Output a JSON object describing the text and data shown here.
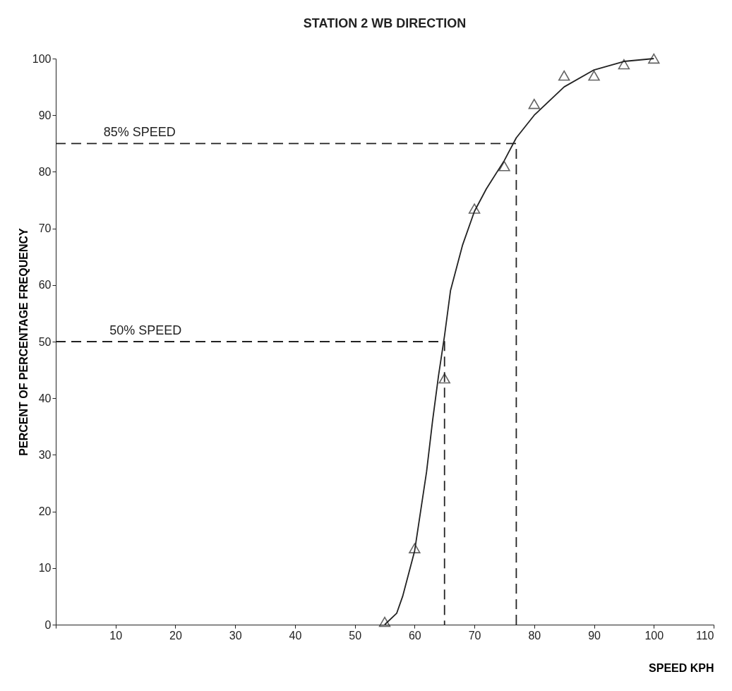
{
  "chart_data": {
    "type": "scatter",
    "title": "STATION 2 WB DIRECTION",
    "xlabel": "SPEED KPH",
    "ylabel": "PERCENT OF PERCENTAGE FREQUENCY",
    "xlim": [
      0,
      110
    ],
    "ylim": [
      0,
      100
    ],
    "xticks": [
      {
        "value": 0,
        "label": null
      },
      10,
      20,
      30,
      40,
      50,
      60,
      70,
      80,
      90,
      100,
      110
    ],
    "yticks": [
      0,
      10,
      20,
      30,
      40,
      50,
      60,
      70,
      80,
      90,
      100
    ],
    "grid": false,
    "series": [
      {
        "type": "scatter",
        "marker": "triangle",
        "color": "#222222",
        "x": [
          55,
          60,
          65,
          70,
          75,
          80,
          85,
          90,
          95,
          100
        ],
        "values": [
          0.5,
          13.5,
          43.5,
          73.5,
          81,
          92,
          97,
          97,
          99,
          100
        ]
      },
      {
        "type": "line",
        "marker": "none",
        "line_style": "solid",
        "color": "#222222",
        "x": [
          55,
          57,
          58,
          60,
          62,
          63,
          64,
          65,
          66,
          68,
          70,
          72,
          75,
          77,
          80,
          85,
          90,
          95,
          100
        ],
        "values": [
          0,
          2,
          5,
          13,
          27,
          36,
          44,
          51,
          59,
          67,
          73,
          77,
          82,
          86,
          90,
          95,
          98,
          99.5,
          100
        ]
      },
      {
        "type": "line",
        "marker": "none",
        "line_style": "dashed",
        "color": "#222222",
        "x": [
          0,
          77,
          77
        ],
        "values": [
          85,
          85,
          0
        ]
      },
      {
        "type": "line",
        "marker": "none",
        "line_style": "dashed",
        "color": "#222222",
        "x": [
          0,
          65,
          65
        ],
        "values": [
          50,
          50,
          0
        ]
      }
    ],
    "annotations": [
      {
        "text": "85% SPEED",
        "x": 8,
        "y": 85
      },
      {
        "text": "50% SPEED",
        "x": 9,
        "y": 50
      }
    ]
  }
}
